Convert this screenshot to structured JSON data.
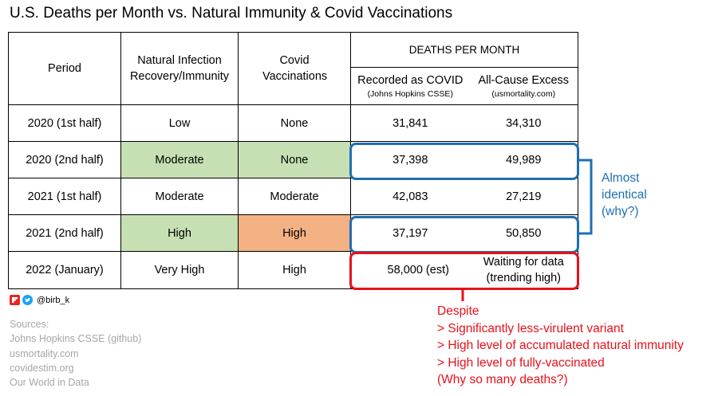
{
  "title": "U.S. Deaths per Month vs. Natural Immunity & Covid Vaccinations",
  "chart_data": {
    "type": "table",
    "headers": {
      "period": "Period",
      "natural": "Natural Infection Recovery/Immunity",
      "vaccinations": "Covid Vaccinations",
      "deaths_group": "DEATHS PER MONTH",
      "recorded": "Recorded as COVID",
      "recorded_source": "(Johns Hopkins CSSE)",
      "excess": "All-Cause Excess",
      "excess_source": "(usmortality.com)"
    },
    "rows": [
      {
        "period": "2020 (1st half)",
        "natural": "Low",
        "vaccinations": "None",
        "recorded": "31,841",
        "excess": "34,310"
      },
      {
        "period": "2020 (2nd half)",
        "natural": "Moderate",
        "vaccinations": "None",
        "recorded": "37,398",
        "excess": "49,989"
      },
      {
        "period": "2021 (1st half)",
        "natural": "Moderate",
        "vaccinations": "Moderate",
        "recorded": "42,083",
        "excess": "27,219"
      },
      {
        "period": "2021 (2nd half)",
        "natural": "High",
        "vaccinations": "High",
        "recorded": "37,197",
        "excess": "50,850"
      },
      {
        "period": "2022 (January)",
        "natural": "Very High",
        "vaccinations": "High",
        "recorded": "58,000 (est)",
        "excess": "Waiting for data (trending high)"
      }
    ],
    "recorded_values": [
      31841,
      37398,
      42083,
      37197,
      58000
    ],
    "excess_values": [
      34310,
      49989,
      27219,
      50850,
      null
    ],
    "cell_colors": {
      "green": "#c6e0b4",
      "orange": "#f4b183"
    }
  },
  "annotations": {
    "blue_note": [
      "Almost",
      "identical",
      "(why?)"
    ],
    "blue_color": "#1f6fb2",
    "red_note": [
      "Despite",
      "> Significantly less-virulent variant",
      "> High level of accumulated natural immunity",
      "> High level of fully-vaccinated",
      "(Why so many deaths?)"
    ],
    "red_color": "#e8101b"
  },
  "social": {
    "handle": "@birb_k",
    "icons": [
      "flipboard-icon",
      "twitter-icon"
    ]
  },
  "sources": {
    "label": "Sources:",
    "items": [
      "Johns Hopkins CSSE (github)",
      "usmortality.com",
      "covidestim.org",
      "Our World in Data"
    ]
  }
}
